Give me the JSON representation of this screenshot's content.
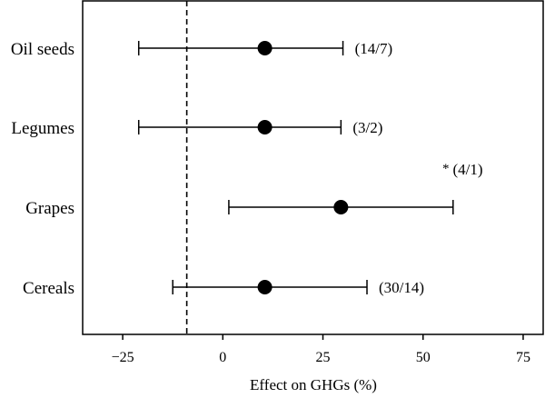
{
  "chart_data": {
    "type": "scatter",
    "xlabel": "Effect on GHGs (%)",
    "xlim": [
      -35,
      80
    ],
    "xticks": [
      -25,
      0,
      25,
      50,
      75
    ],
    "xtick_labels": [
      "−25",
      "0",
      "25",
      "50",
      "75"
    ],
    "reference_line": -9,
    "categories": [
      "Oil seeds",
      "Legumes",
      "Grapes",
      "Cereals"
    ],
    "points": [
      {
        "category": "Oil seeds",
        "estimate": 10.5,
        "ci_low": -21,
        "ci_high": 30,
        "label": "(14/7)"
      },
      {
        "category": "Legumes",
        "estimate": 10.5,
        "ci_low": -21,
        "ci_high": 29.5,
        "label": "(3/2)"
      },
      {
        "category": "Grapes",
        "estimate": 29.5,
        "ci_low": 1.5,
        "ci_high": 57.5,
        "label": "(4/1)",
        "marker": "*"
      },
      {
        "category": "Cereals",
        "estimate": 10.5,
        "ci_low": -12.5,
        "ci_high": 36,
        "label": "(30/14)"
      }
    ],
    "grid": false,
    "legend": "none"
  }
}
